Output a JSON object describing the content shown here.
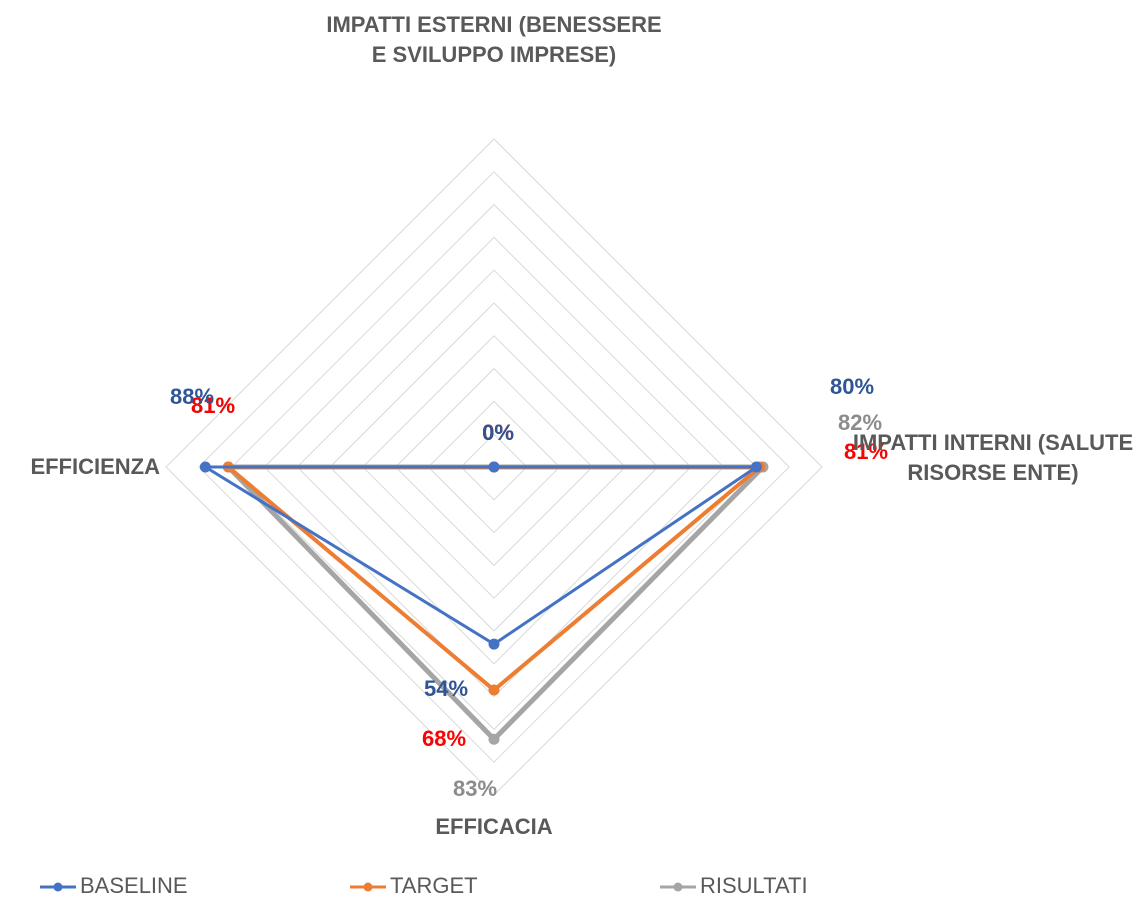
{
  "chart_data": {
    "type": "radar",
    "categories": [
      "IMPATTI ESTERNI (BENESSERE E SVILUPPO IMPRESE)",
      "IMPATTI INTERNI (SALUTE RISORSE ENTE)",
      "EFFICACIA",
      "EFFICIENZA"
    ],
    "rlim": [
      0,
      100
    ],
    "rticks": [
      10,
      20,
      30,
      40,
      50,
      60,
      70,
      80,
      90,
      100
    ],
    "grid": true,
    "legend": "bottom",
    "series": [
      {
        "name": "BASELINE",
        "color": "#4472c4",
        "label_color": "#2f5597",
        "values": [
          0,
          80,
          54,
          88
        ],
        "value_labels": [
          "0%",
          "80%",
          "54%",
          "88%"
        ]
      },
      {
        "name": "TARGET",
        "color": "#ed7d31",
        "label_color": "#ff0000",
        "values": [
          0,
          81,
          68,
          81
        ],
        "value_labels": [
          "0%",
          "81%",
          "68%",
          "81%"
        ]
      },
      {
        "name": "RISULTATI",
        "color": "#a5a5a5",
        "label_color": "#8c8c8c",
        "values": [
          0,
          82,
          83,
          81
        ],
        "value_labels": [
          "0%",
          "82%",
          "83%",
          "81%"
        ]
      }
    ]
  }
}
